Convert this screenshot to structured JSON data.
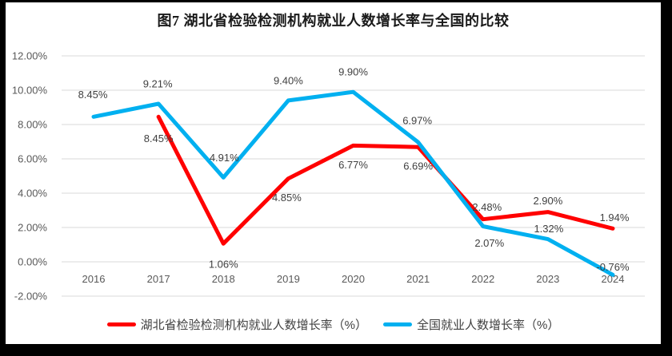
{
  "chart_data": {
    "type": "line",
    "title": "图7 湖北省检验检测机构就业人数增长率与全国的比较",
    "categories": [
      "2016",
      "2017",
      "2018",
      "2019",
      "2020",
      "2021",
      "2022",
      "2023",
      "2024"
    ],
    "y_axis": {
      "min": -2,
      "max": 12,
      "step": 2,
      "tick_labels": [
        "-2.00%",
        "0.00%",
        "2.00%",
        "4.00%",
        "6.00%",
        "8.00%",
        "10.00%",
        "12.00%"
      ]
    },
    "grid": "horizontal",
    "legend_position": "bottom",
    "series": [
      {
        "name": "湖北省检验检测机构就业人数增长率（%）",
        "color": "#FF0000",
        "values": [
          null,
          8.45,
          1.06,
          4.85,
          6.77,
          6.69,
          2.48,
          2.9,
          1.94
        ],
        "labels": [
          "",
          "8.45%",
          "1.06%",
          "4.85%",
          "6.77%",
          "6.69%",
          "2.48%",
          "2.90%",
          "1.94%"
        ],
        "label_offsets": [
          null,
          [
            0,
            27
          ],
          [
            0,
            26
          ],
          [
            -2,
            24
          ],
          [
            0,
            24
          ],
          [
            0,
            24
          ],
          [
            5,
            -15
          ],
          [
            0,
            -14
          ],
          [
            2,
            -14
          ]
        ]
      },
      {
        "name": "全国就业人数增长率（%）",
        "color": "#00B0F0",
        "values": [
          8.45,
          9.21,
          4.91,
          9.4,
          9.9,
          6.97,
          2.07,
          1.32,
          -0.76
        ],
        "labels": [
          "8.45%",
          "9.21%",
          "4.91%",
          "9.40%",
          "9.90%",
          "6.97%",
          "2.07%",
          "1.32%",
          "-0.76%"
        ],
        "label_offsets": [
          [
            -1,
            -28
          ],
          [
            -1,
            -25
          ],
          [
            1,
            -25
          ],
          [
            0,
            -25
          ],
          [
            0,
            -25
          ],
          [
            -1,
            -27
          ],
          [
            8,
            21
          ],
          [
            1,
            -13
          ],
          [
            0,
            -10
          ]
        ]
      }
    ]
  }
}
